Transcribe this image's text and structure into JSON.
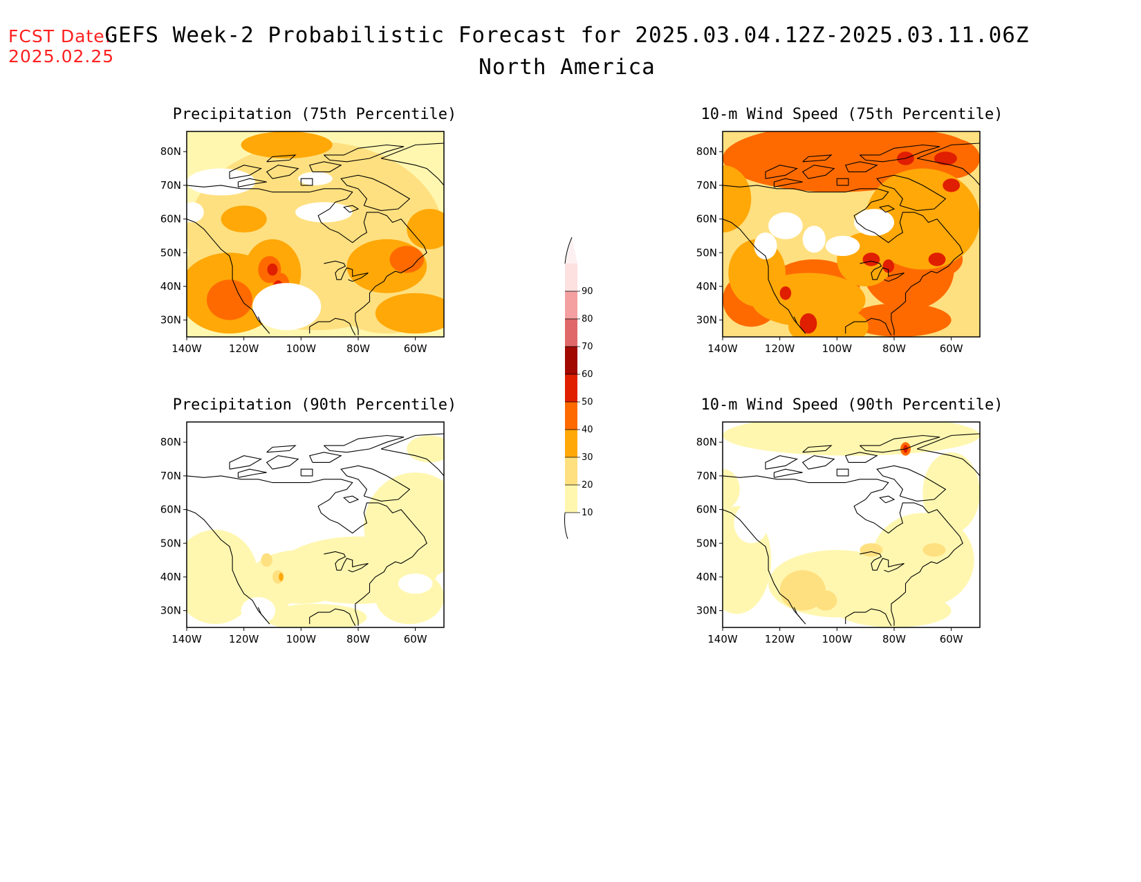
{
  "header": {
    "fcst_label": "FCST Date:",
    "fcst_date": "2025.02.25",
    "title": "GEFS Week-2 Probabilistic Forecast for 2025.03.04.12Z-2025.03.11.06Z",
    "subtitle": "North America"
  },
  "axes": {
    "lat_labels": [
      "30N",
      "40N",
      "50N",
      "60N",
      "70N",
      "80N"
    ],
    "lon_labels": [
      "140W",
      "120W",
      "100W",
      "80W",
      "60W"
    ]
  },
  "colorbar": {
    "levels": [
      "10",
      "20",
      "30",
      "40",
      "50",
      "60",
      "70",
      "80",
      "90"
    ],
    "colors": [
      "#fff7b0",
      "#ffe080",
      "#ffa808",
      "#ff6a00",
      "#e01e00",
      "#a00800",
      "#e06868",
      "#f4a0a0",
      "#fde0e0"
    ],
    "unit_percent": true
  },
  "panels": [
    {
      "id": "precip75",
      "title": "Precipitation (75th Percentile)"
    },
    {
      "id": "wind75",
      "title": "10-m Wind Speed (75th Percentile)"
    },
    {
      "id": "precip90",
      "title": "Precipitation (90th Percentile)"
    },
    {
      "id": "wind90",
      "title": "10-m Wind Speed (90th Percentile)"
    }
  ]
}
